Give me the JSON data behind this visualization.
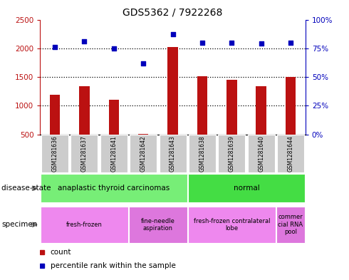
{
  "title": "GDS5362 / 7922268",
  "samples": [
    "GSM1281636",
    "GSM1281637",
    "GSM1281641",
    "GSM1281642",
    "GSM1281643",
    "GSM1281638",
    "GSM1281639",
    "GSM1281640",
    "GSM1281644"
  ],
  "counts": [
    1190,
    1335,
    1100,
    510,
    2020,
    1510,
    1450,
    1340,
    1500
  ],
  "percentiles": [
    76,
    81,
    75,
    62,
    87,
    80,
    80,
    79,
    80
  ],
  "ylim_left": [
    500,
    2500
  ],
  "ylim_right": [
    0,
    100
  ],
  "yticks_left": [
    500,
    1000,
    1500,
    2000,
    2500
  ],
  "yticks_right": [
    0,
    25,
    50,
    75,
    100
  ],
  "bar_color": "#bb1111",
  "dot_color": "#0000bb",
  "title_fontsize": 10,
  "disease_spans": [
    [
      0,
      5,
      "anaplastic thyroid carcinomas",
      "#77ee77"
    ],
    [
      5,
      9,
      "normal",
      "#44dd44"
    ]
  ],
  "specimen_spans": [
    [
      0,
      3,
      "fresh-frozen",
      "#ee88ee"
    ],
    [
      3,
      5,
      "fine-needle\naspiration",
      "#dd77dd"
    ],
    [
      5,
      8,
      "fresh-frozen contralateral\nlobe",
      "#ee88ee"
    ],
    [
      8,
      9,
      "commer\ncial RNA\npool",
      "#dd77dd"
    ]
  ]
}
